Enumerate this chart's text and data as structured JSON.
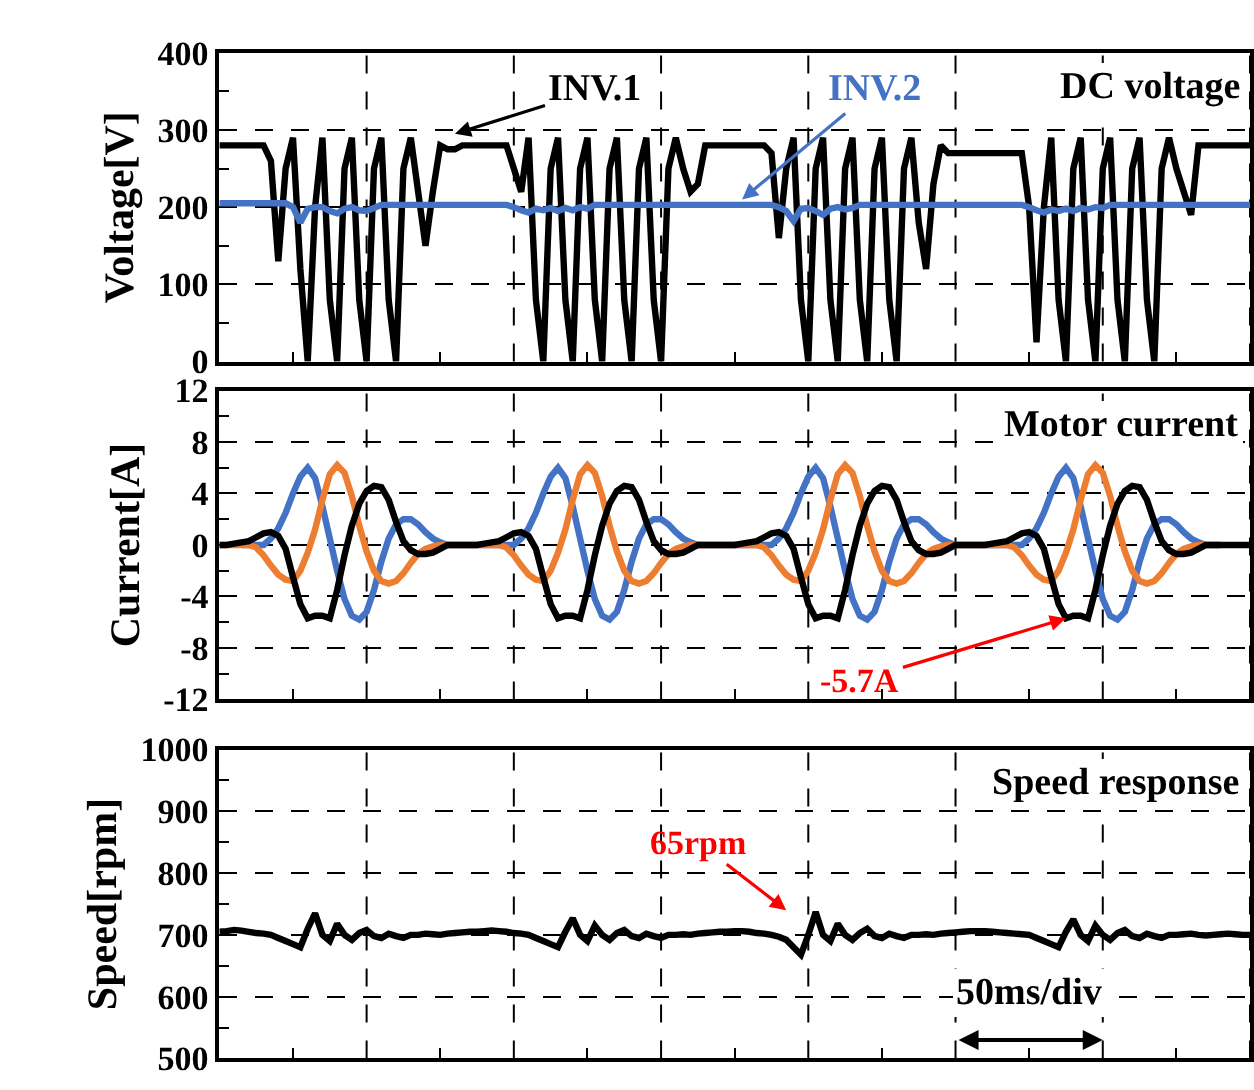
{
  "chart_data": [
    {
      "type": "line",
      "ylabel": "Voltage[V]",
      "annotations": [
        "DC voltage",
        {
          "text": "INV.1",
          "y": 295
        },
        {
          "text": "INV.2",
          "y": 210
        }
      ],
      "categories": [
        null,
        null,
        null,
        null,
        null,
        null,
        null,
        null,
        null,
        null,
        null,
        null,
        null,
        null,
        null,
        null,
        null,
        null,
        null,
        null,
        null,
        null,
        null,
        null,
        null,
        null,
        null,
        null,
        null,
        null,
        null,
        null,
        null,
        null,
        null,
        null,
        null,
        null,
        null,
        null,
        null,
        null,
        null,
        null,
        null,
        null,
        null,
        null,
        null,
        null,
        null,
        null,
        null,
        null,
        null,
        null,
        null,
        null,
        null,
        null,
        null,
        null,
        null,
        null,
        null,
        null,
        null,
        null,
        null,
        null,
        null,
        null,
        null,
        null,
        null,
        null,
        null,
        null,
        null,
        null,
        null,
        null,
        null,
        null,
        null,
        null,
        null,
        null,
        null,
        null,
        null,
        null,
        null,
        null,
        null,
        null,
        null,
        null,
        null,
        null,
        null,
        null,
        null,
        null,
        null,
        null,
        null,
        null,
        null,
        null,
        null,
        null,
        null,
        null,
        null,
        null,
        null,
        null,
        null,
        null,
        null,
        null,
        null,
        null,
        null,
        null,
        null,
        null,
        null,
        null,
        null,
        null,
        null,
        null,
        null,
        null,
        null,
        null,
        null,
        null,
        null
      ],
      "ylim": [
        0,
        400
      ],
      "yticks": [
        0,
        100,
        200,
        300,
        400
      ],
      "grid": true,
      "series": [
        {
          "color": "#000000",
          "values": [
            280,
            280,
            280,
            280,
            280,
            280,
            280,
            260,
            130,
            250,
            290,
            120,
            0,
            200,
            290,
            80,
            0,
            250,
            290,
            80,
            0,
            250,
            290,
            80,
            0,
            250,
            290,
            220,
            150,
            220,
            280,
            275,
            275,
            280,
            280,
            280,
            280,
            280,
            280,
            280,
            250,
            220,
            290,
            80,
            0,
            250,
            290,
            80,
            0,
            250,
            290,
            80,
            0,
            250,
            290,
            80,
            0,
            250,
            290,
            80,
            0,
            250,
            290,
            250,
            220,
            230,
            280,
            280,
            280,
            280,
            280,
            280,
            280,
            280,
            280,
            270,
            160,
            250,
            290,
            80,
            0,
            250,
            290,
            80,
            0,
            250,
            290,
            80,
            0,
            250,
            290,
            80,
            0,
            250,
            290,
            180,
            120,
            230,
            280,
            270,
            270,
            270,
            270,
            270,
            270,
            270,
            270,
            270,
            270,
            270,
            200,
            25,
            200,
            290,
            80,
            0,
            250,
            290,
            80,
            0,
            250,
            290,
            80,
            0,
            250,
            290,
            80,
            0,
            250,
            290,
            250,
            220,
            190,
            280,
            280,
            280,
            280,
            280,
            280,
            280,
            280
          ]
        },
        {
          "color": "#4472c4",
          "values": [
            205,
            205,
            205,
            205,
            205,
            205,
            205,
            205,
            205,
            205,
            200,
            180,
            198,
            200,
            200,
            195,
            192,
            198,
            200,
            196,
            195,
            199,
            203,
            203,
            203,
            203,
            203,
            203,
            203,
            203,
            203,
            203,
            203,
            203,
            203,
            203,
            203,
            203,
            203,
            203,
            200,
            196,
            193,
            198,
            196,
            199,
            195,
            199,
            196,
            200,
            198,
            203,
            203,
            203,
            203,
            203,
            203,
            203,
            203,
            203,
            203,
            203,
            203,
            203,
            203,
            203,
            203,
            203,
            203,
            203,
            203,
            203,
            203,
            203,
            203,
            203,
            200,
            195,
            182,
            198,
            199,
            195,
            190,
            198,
            200,
            197,
            199,
            203,
            203,
            203,
            203,
            203,
            203,
            203,
            203,
            203,
            203,
            203,
            203,
            203,
            203,
            203,
            203,
            203,
            203,
            203,
            203,
            203,
            203,
            203,
            200,
            196,
            193,
            197,
            195,
            198,
            195,
            199,
            197,
            200,
            199,
            203,
            203,
            203,
            203,
            203,
            203,
            203,
            203,
            203,
            203,
            203,
            203,
            203,
            203,
            203,
            203,
            203,
            203,
            203,
            203
          ]
        }
      ]
    },
    {
      "type": "line",
      "ylabel": "Current[A]",
      "annotations": [
        "Motor current",
        {
          "text": "-5.7A",
          "y": -5.7
        }
      ],
      "categories": [
        null,
        null,
        null,
        null,
        null,
        null,
        null,
        null,
        null,
        null,
        null,
        null,
        null,
        null,
        null,
        null,
        null,
        null,
        null,
        null,
        null,
        null,
        null,
        null,
        null,
        null,
        null,
        null,
        null,
        null,
        null,
        null,
        null,
        null,
        null,
        null,
        null,
        null,
        null,
        null,
        null,
        null,
        null,
        null,
        null,
        null,
        null,
        null,
        null,
        null,
        null,
        null,
        null,
        null,
        null,
        null,
        null,
        null,
        null,
        null,
        null,
        null,
        null,
        null,
        null,
        null,
        null,
        null,
        null,
        null,
        null,
        null,
        null,
        null,
        null,
        null,
        null,
        null,
        null,
        null,
        null,
        null,
        null,
        null,
        null,
        null,
        null,
        null,
        null,
        null,
        null,
        null,
        null,
        null,
        null,
        null,
        null,
        null,
        null,
        null,
        null,
        null,
        null,
        null,
        null,
        null,
        null,
        null,
        null,
        null,
        null,
        null,
        null,
        null,
        null,
        null,
        null,
        null,
        null,
        null,
        null,
        null,
        null,
        null,
        null,
        null,
        null,
        null,
        null,
        null,
        null,
        null,
        null,
        null,
        null,
        null,
        null,
        null,
        null,
        null,
        null
      ],
      "ylim": [
        -12,
        12
      ],
      "yticks": [
        -12,
        -8,
        -4,
        0,
        4,
        8,
        12
      ],
      "grid": true,
      "series": [
        {
          "color": "#4472c4",
          "values": [
            null,
            null,
            null,
            0,
            0,
            0,
            0,
            0.5,
            1.3,
            2.5,
            4,
            5.3,
            6,
            5.2,
            3,
            0.5,
            -2,
            -4.2,
            -5.5,
            -5.8,
            -5.2,
            -3.5,
            -1.3,
            0.5,
            1.6,
            2,
            2,
            1.6,
            1,
            0.5,
            0.2,
            0,
            0,
            0,
            0,
            0,
            0,
            0,
            0,
            0,
            0,
            0.5,
            1.3,
            2.5,
            4,
            5.3,
            6,
            5.2,
            3,
            0.5,
            -2,
            -4.2,
            -5.5,
            -5.8,
            -5.2,
            -3.5,
            -1.3,
            0.5,
            1.6,
            2,
            2,
            1.6,
            1,
            0.5,
            0.2,
            0,
            0,
            0,
            0,
            0,
            0,
            0,
            0,
            0,
            0,
            0,
            0.5,
            1.3,
            2.5,
            4,
            5.3,
            6,
            5.2,
            3,
            0.5,
            -2,
            -4.2,
            -5.5,
            -5.8,
            -5.2,
            -3.5,
            -1.3,
            0.5,
            1.6,
            2,
            2,
            1.6,
            1,
            0.5,
            0.2,
            0,
            0,
            0,
            0,
            0,
            0,
            0,
            0,
            0,
            0,
            0.5,
            1.3,
            2.5,
            4,
            5.3,
            6,
            5.2,
            3,
            0.5,
            -2,
            -4.2,
            -5.5,
            -5.8,
            -5.2,
            -3.5,
            -1.3,
            0.5,
            1.6,
            2,
            2,
            1.6,
            1,
            0.5,
            0.2,
            0,
            0,
            0,
            null,
            null,
            null,
            null
          ]
        },
        {
          "color": "#ed7d31",
          "values": [
            0,
            0,
            0,
            0,
            0,
            -0.2,
            -0.8,
            -1.6,
            -2.3,
            -2.7,
            -2.8,
            -2,
            -0.6,
            1.2,
            3.5,
            5.5,
            6.2,
            5.6,
            3.8,
            1.5,
            -0.5,
            -2,
            -2.8,
            -3,
            -2.8,
            -2.2,
            -1.4,
            -0.7,
            -0.3,
            -0.1,
            0,
            0,
            0,
            0,
            0,
            0,
            0,
            0,
            0,
            -0.2,
            -0.8,
            -1.6,
            -2.3,
            -2.7,
            -2.8,
            -2,
            -0.6,
            1.2,
            3.5,
            5.5,
            6.2,
            5.6,
            3.8,
            1.5,
            -0.5,
            -2,
            -2.8,
            -3,
            -2.8,
            -2.2,
            -1.4,
            -0.7,
            -0.3,
            -0.1,
            0,
            0,
            0,
            0,
            0,
            0,
            0,
            0,
            0,
            0,
            -0.2,
            -0.8,
            -1.6,
            -2.3,
            -2.7,
            -2.8,
            -2,
            -0.6,
            1.2,
            3.5,
            5.5,
            6.2,
            5.6,
            3.8,
            1.5,
            -0.5,
            -2,
            -2.8,
            -3,
            -2.8,
            -2.2,
            -1.4,
            -0.7,
            -0.3,
            -0.1,
            0,
            0,
            0,
            0,
            0,
            0,
            0,
            0,
            0,
            -0.2,
            -0.8,
            -1.6,
            -2.3,
            -2.7,
            -2.8,
            -2,
            -0.6,
            1.2,
            3.5,
            5.5,
            6.2,
            5.6,
            3.8,
            1.5,
            -0.5,
            -2,
            -2.8,
            -3,
            -2.8,
            -2.2,
            -1.4,
            -0.7,
            -0.3,
            -0.1,
            0,
            0,
            0,
            0,
            null,
            null,
            null,
            null
          ]
        },
        {
          "color": "#000000",
          "values": [
            0,
            0,
            0.1,
            0.2,
            0.3,
            0.6,
            0.9,
            1,
            0.7,
            -0.3,
            -2.5,
            -4.6,
            -5.7,
            -5.5,
            -5.5,
            -5.7,
            -3.5,
            -0.8,
            1.5,
            3.2,
            4.2,
            4.6,
            4.5,
            3.5,
            1.8,
            0.3,
            -0.4,
            -0.7,
            -0.7,
            -0.6,
            -0.3,
            0,
            0,
            0,
            0,
            0,
            0.1,
            0.2,
            0.3,
            0.6,
            0.9,
            1,
            0.7,
            -0.3,
            -2.5,
            -4.6,
            -5.7,
            -5.5,
            -5.5,
            -5.7,
            -3.5,
            -0.8,
            1.5,
            3.2,
            4.2,
            4.6,
            4.5,
            3.5,
            1.8,
            0.3,
            -0.4,
            -0.7,
            -0.7,
            -0.6,
            -0.3,
            0,
            0,
            0,
            0,
            0,
            0,
            0.1,
            0.2,
            0.3,
            0.6,
            0.9,
            1,
            0.7,
            -0.3,
            -2.5,
            -4.6,
            -5.7,
            -5.5,
            -5.5,
            -5.7,
            -3.5,
            -0.8,
            1.5,
            3.2,
            4.2,
            4.6,
            4.5,
            3.5,
            1.8,
            0.3,
            -0.4,
            -0.7,
            -0.7,
            -0.6,
            -0.3,
            0,
            0,
            0,
            0,
            0,
            0.1,
            0.2,
            0.3,
            0.6,
            0.9,
            1,
            0.7,
            -0.3,
            -2.5,
            -4.6,
            -5.7,
            -5.5,
            -5.5,
            -5.7,
            -3.5,
            -0.8,
            1.5,
            3.2,
            4.2,
            4.6,
            4.5,
            3.5,
            1.8,
            0.3,
            -0.4,
            -0.7,
            -0.7,
            -0.6,
            -0.3,
            0,
            0,
            0,
            0,
            0,
            0,
            0
          ]
        }
      ]
    },
    {
      "type": "line",
      "ylabel": "Speed[rpm]",
      "annotations": [
        "Speed response",
        "50ms/div",
        "65rpm"
      ],
      "categories": [
        null,
        null,
        null,
        null,
        null,
        null,
        null,
        null,
        null,
        null,
        null,
        null,
        null,
        null,
        null,
        null,
        null,
        null,
        null,
        null,
        null,
        null,
        null,
        null,
        null,
        null,
        null,
        null,
        null,
        null,
        null,
        null,
        null,
        null,
        null,
        null,
        null,
        null,
        null,
        null,
        null,
        null,
        null,
        null,
        null,
        null,
        null,
        null,
        null,
        null,
        null,
        null,
        null,
        null,
        null,
        null,
        null,
        null,
        null,
        null,
        null,
        null,
        null,
        null,
        null,
        null,
        null,
        null,
        null,
        null,
        null,
        null,
        null,
        null,
        null,
        null,
        null,
        null,
        null,
        null,
        null,
        null,
        null,
        null,
        null,
        null,
        null,
        null,
        null,
        null,
        null,
        null,
        null,
        null,
        null,
        null,
        null,
        null,
        null,
        null,
        null,
        null,
        null,
        null,
        null,
        null,
        null,
        null,
        null,
        null,
        null,
        null,
        null,
        null,
        null,
        null,
        null,
        null,
        null,
        null,
        null,
        null,
        null,
        null,
        null,
        null,
        null,
        null,
        null,
        null,
        null,
        null,
        null,
        null,
        null,
        null,
        null,
        null,
        null,
        null,
        null
      ],
      "ylim": [
        500,
        1000
      ],
      "yticks": [
        500,
        600,
        700,
        800,
        900,
        1000
      ],
      "grid": true,
      "series": [
        {
          "color": "#000000",
          "values": [
            705,
            706,
            708,
            707,
            705,
            703,
            702,
            700,
            695,
            690,
            685,
            680,
            710,
            735,
            700,
            690,
            718,
            700,
            692,
            703,
            708,
            698,
            695,
            702,
            698,
            695,
            700,
            700,
            702,
            701,
            700,
            702,
            703,
            704,
            705,
            705,
            706,
            707,
            706,
            705,
            703,
            702,
            700,
            695,
            690,
            685,
            680,
            705,
            727,
            700,
            690,
            715,
            700,
            692,
            703,
            708,
            698,
            695,
            702,
            698,
            695,
            700,
            700,
            701,
            700,
            702,
            703,
            704,
            705,
            705,
            706,
            706,
            705,
            703,
            702,
            700,
            697,
            692,
            680,
            668,
            700,
            737,
            700,
            690,
            718,
            700,
            692,
            703,
            710,
            698,
            695,
            702,
            698,
            695,
            700,
            700,
            701,
            700,
            702,
            703,
            704,
            705,
            706,
            706,
            706,
            705,
            704,
            703,
            702,
            701,
            700,
            695,
            690,
            685,
            680,
            705,
            725,
            700,
            690,
            715,
            700,
            692,
            703,
            708,
            698,
            695,
            702,
            698,
            695,
            700,
            700,
            701,
            702,
            700,
            699,
            700,
            701,
            702,
            701,
            700,
            700
          ]
        }
      ]
    }
  ]
}
